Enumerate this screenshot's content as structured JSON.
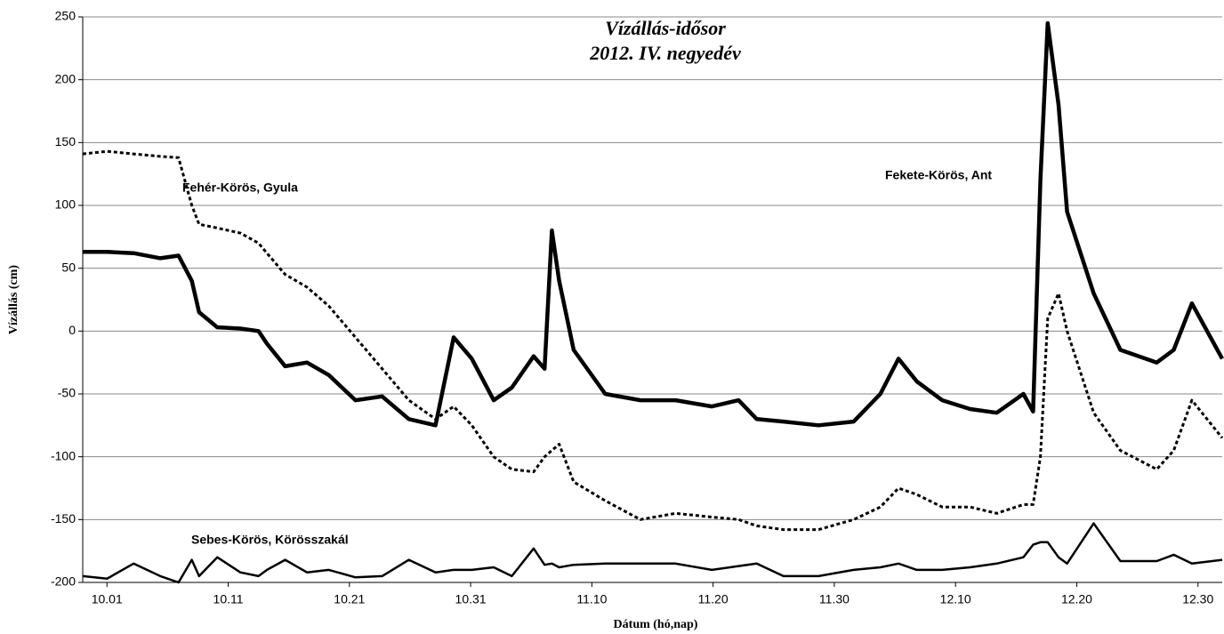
{
  "chart_data": {
    "type": "line",
    "title": [
      "Vízállás-idősor",
      "2012. IV. negyedév"
    ],
    "y_label": "Vízállás (cm)",
    "x_label": "Dátum (hó,nap)",
    "x": [
      -2.0,
      0,
      2.2,
      4.4,
      5.9,
      7.0,
      7.6,
      9.1,
      11.0,
      12.5,
      13.2,
      14.7,
      16.5,
      18.3,
      20.5,
      22.7,
      24.9,
      27.1,
      28.6,
      30.1,
      31.9,
      33.4,
      35.2,
      36.1,
      36.7,
      37.3,
      38.5,
      41.1,
      44.0,
      46.9,
      49.9,
      52.1,
      53.6,
      55.8,
      58.7,
      61.6,
      63.8,
      65.3,
      66.8,
      68.9,
      71.2,
      73.4,
      75.6,
      76.4,
      77.0,
      77.6,
      78.5,
      79.2,
      81.4,
      83.6,
      86.6,
      88.0,
      89.5,
      92.0
    ],
    "xlim": [
      -2,
      92
    ],
    "xticks": [
      {
        "value": 0,
        "label": "10.01"
      },
      {
        "value": 10,
        "label": "10.11"
      },
      {
        "value": 20,
        "label": "10.21"
      },
      {
        "value": 30,
        "label": "10.31"
      },
      {
        "value": 40,
        "label": "11.10"
      },
      {
        "value": 50,
        "label": "11.20"
      },
      {
        "value": 60,
        "label": "11.30"
      },
      {
        "value": 70,
        "label": "12.10"
      },
      {
        "value": 80,
        "label": "12.20"
      },
      {
        "value": 90,
        "label": "12.30"
      }
    ],
    "ylim": [
      -200,
      250
    ],
    "yticks": [
      -200,
      -150,
      -100,
      -50,
      0,
      50,
      100,
      150,
      200,
      250
    ],
    "grid": true,
    "series": [
      {
        "name": "Fekete-Körös, Ant",
        "color": "#000000",
        "line_width": 4.5,
        "dash": "none",
        "values": [
          63,
          63,
          62,
          58,
          60,
          40,
          15,
          3,
          2,
          0,
          -10,
          -28,
          -25,
          -35,
          -55,
          -52,
          -70,
          -75,
          -5,
          -22,
          -55,
          -45,
          -20,
          -30,
          80,
          40,
          -15,
          -50,
          -55,
          -55,
          -60,
          -55,
          -70,
          -72,
          -75,
          -72,
          -50,
          -22,
          -40,
          -55,
          -62,
          -65,
          -50,
          -64,
          120,
          245,
          180,
          95,
          30,
          -15,
          -25,
          -15,
          22,
          -22
        ]
      },
      {
        "name": "Fehér-Körös,  Gyula",
        "color": "#000000",
        "line_width": 3,
        "dash": "4 3",
        "values": [
          141,
          143,
          141,
          139,
          138,
          100,
          85,
          82,
          78,
          70,
          62,
          45,
          35,
          20,
          -5,
          -30,
          -55,
          -70,
          -60,
          -75,
          -100,
          -110,
          -112,
          -100,
          -95,
          -90,
          -120,
          -135,
          -150,
          -145,
          -148,
          -150,
          -155,
          -158,
          -158,
          -150,
          -140,
          -125,
          -130,
          -140,
          -140,
          -145,
          -138,
          -138,
          -100,
          10,
          30,
          0,
          -65,
          -95,
          -110,
          -95,
          -55,
          -85
        ]
      },
      {
        "name": "Sebes-Körös,  Körösszakál",
        "color": "#000000",
        "line_width": 2.5,
        "dash": "none",
        "values": [
          -195,
          -197,
          -185,
          -195,
          -200,
          -182,
          -195,
          -180,
          -192,
          -195,
          -190,
          -182,
          -192,
          -190,
          -196,
          -195,
          -182,
          -192,
          -190,
          -190,
          -188,
          -195,
          -173,
          -186,
          -185,
          -188,
          -186,
          -185,
          -185,
          -185,
          -190,
          -187,
          -185,
          -195,
          -195,
          -190,
          -188,
          -185,
          -190,
          -190,
          -188,
          -185,
          -180,
          -170,
          -168,
          -168,
          -180,
          -185,
          -153,
          -183,
          -183,
          -178,
          -185,
          -182
        ]
      }
    ]
  }
}
